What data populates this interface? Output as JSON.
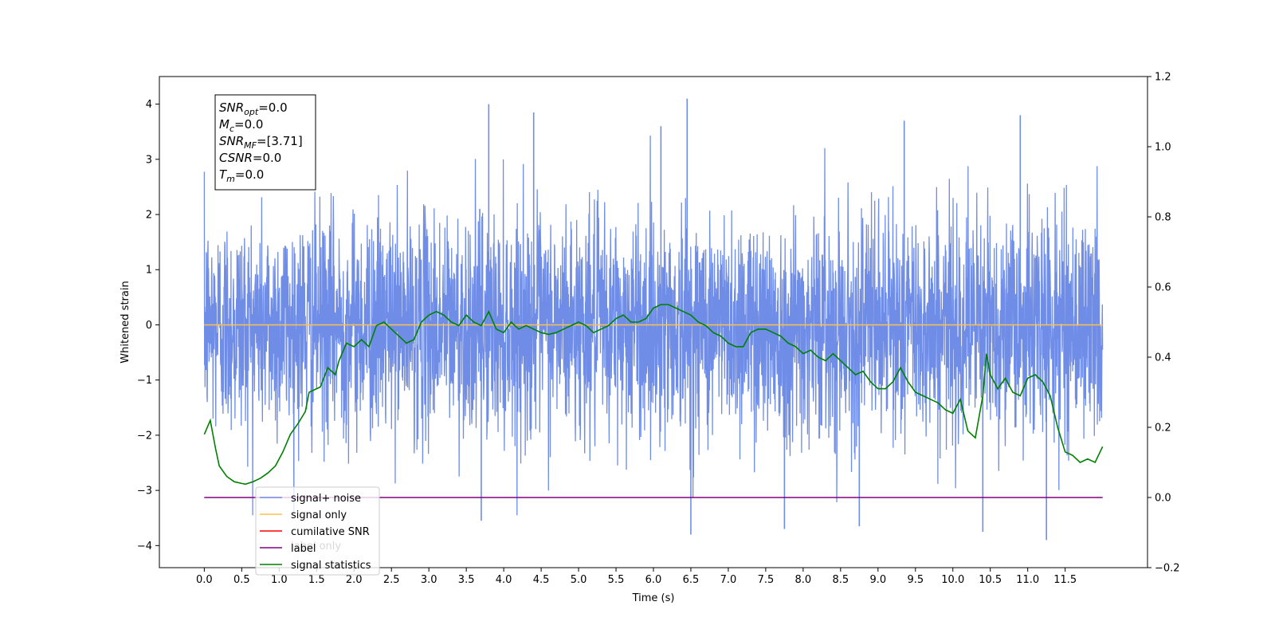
{
  "chart_data": {
    "type": "line",
    "xlabel": "Time (s)",
    "ylabel": "Whitened strain",
    "ylabel_right": "",
    "xlim": [
      -0.6,
      12.6
    ],
    "ylim": [
      -4.4,
      4.5
    ],
    "ylim_right": [
      -0.2,
      1.2
    ],
    "xticks": [
      0.0,
      0.5,
      1.0,
      1.5,
      2.0,
      2.5,
      3.0,
      3.5,
      4.0,
      4.5,
      5.0,
      5.5,
      6.0,
      6.5,
      7.0,
      7.5,
      8.0,
      8.5,
      9.0,
      9.5,
      10.0,
      10.5,
      11.0,
      11.5
    ],
    "xtick_labels": [
      "0.0",
      "0.5",
      "1.0",
      "1.5",
      "2.0",
      "2.5",
      "3.0",
      "3.5",
      "4.0",
      "4.5",
      "5.0",
      "5.5",
      "6.0",
      "6.5",
      "7.0",
      "7.5",
      "8.0",
      "8.5",
      "9.0",
      "9.5",
      "10.0",
      "10.5",
      "11.0",
      "11.5"
    ],
    "yticks_left": [
      -4,
      -3,
      -2,
      -1,
      0,
      1,
      2,
      3,
      4
    ],
    "ytick_labels_left": [
      "−4",
      "−3",
      "−2",
      "−1",
      "0",
      "1",
      "2",
      "3",
      "4"
    ],
    "yticks_right": [
      -0.2,
      0.0,
      0.2,
      0.4,
      0.6,
      0.8,
      1.0,
      1.2
    ],
    "ytick_labels_right": [
      "−0.2",
      "0.0",
      "0.2",
      "0.4",
      "0.6",
      "0.8",
      "1.0",
      "1.2"
    ],
    "grid": false,
    "legend_placement": "lower-left",
    "legend": [
      {
        "label": "signal+ noise",
        "color": "#6f8de6"
      },
      {
        "label": "signal only",
        "color": "#ffc04d"
      },
      {
        "label": "cumilative SNR",
        "color": "#ff0000"
      },
      {
        "label": "label",
        "color": "#800080"
      },
      {
        "label": "signal statistics",
        "color": "#008000"
      }
    ],
    "hidden_legend_text": "label only",
    "stats_box": {
      "lines": [
        {
          "base": "SNR",
          "sub": "opt",
          "value": "=0.0"
        },
        {
          "base": "M",
          "sub": "c",
          "value": "=0.0"
        },
        {
          "base": "SNR",
          "sub": "MF",
          "value": "=[3.71]"
        },
        {
          "base": "CSNR",
          "sub": "",
          "value": "=0.0"
        },
        {
          "base": "T",
          "sub": "m",
          "value": "=0.0"
        }
      ]
    },
    "series": [
      {
        "name": "signal+ noise",
        "axis": "left",
        "color": "#6f8de6",
        "x_range": [
          0.0,
          12.0
        ],
        "noise_sd": 1.0,
        "notable_peaks": [
          {
            "x": 3.8,
            "y": 4.0
          },
          {
            "x": 4.4,
            "y": 3.85
          },
          {
            "x": 6.45,
            "y": 4.1
          },
          {
            "x": 10.9,
            "y": 3.8
          },
          {
            "x": 6.1,
            "y": 3.6
          },
          {
            "x": 9.35,
            "y": 3.7
          },
          {
            "x": 6.5,
            "y": -3.8
          },
          {
            "x": 7.75,
            "y": -3.7
          },
          {
            "x": 11.25,
            "y": -3.9
          },
          {
            "x": 8.75,
            "y": -3.65
          },
          {
            "x": 10.4,
            "y": -3.75
          },
          {
            "x": 3.7,
            "y": -3.55
          }
        ]
      },
      {
        "name": "signal only",
        "axis": "left",
        "color": "#ffc04d",
        "x": [
          0.0,
          12.0
        ],
        "y": [
          0.0,
          0.0
        ]
      },
      {
        "name": "label",
        "axis": "right",
        "color": "#800080",
        "x": [
          0.0,
          12.0
        ],
        "y": [
          0.0,
          0.0
        ]
      },
      {
        "name": "signal statistics",
        "axis": "right",
        "color": "#008000",
        "x": [
          0.0,
          0.08,
          0.15,
          0.2,
          0.3,
          0.4,
          0.5,
          0.55,
          0.65,
          0.75,
          0.85,
          0.95,
          1.05,
          1.15,
          1.25,
          1.35,
          1.4,
          1.55,
          1.65,
          1.75,
          1.8,
          1.9,
          2.0,
          2.1,
          2.2,
          2.3,
          2.4,
          2.5,
          2.6,
          2.7,
          2.8,
          2.9,
          3.0,
          3.1,
          3.2,
          3.3,
          3.4,
          3.5,
          3.6,
          3.7,
          3.8,
          3.9,
          4.0,
          4.1,
          4.2,
          4.3,
          4.4,
          4.5,
          4.6,
          4.7,
          4.8,
          4.9,
          5.0,
          5.1,
          5.2,
          5.3,
          5.4,
          5.5,
          5.6,
          5.7,
          5.8,
          5.9,
          6.0,
          6.1,
          6.2,
          6.3,
          6.4,
          6.5,
          6.6,
          6.7,
          6.8,
          6.9,
          7.0,
          7.1,
          7.2,
          7.3,
          7.4,
          7.5,
          7.6,
          7.7,
          7.8,
          7.9,
          8.0,
          8.1,
          8.2,
          8.3,
          8.4,
          8.5,
          8.6,
          8.7,
          8.8,
          8.9,
          9.0,
          9.1,
          9.2,
          9.3,
          9.4,
          9.5,
          9.6,
          9.7,
          9.8,
          9.9,
          10.0,
          10.1,
          10.2,
          10.3,
          10.4,
          10.45,
          10.5,
          10.6,
          10.7,
          10.8,
          10.9,
          11.0,
          11.1,
          11.2,
          11.3,
          11.4,
          11.5,
          11.6,
          11.7,
          11.8,
          11.9,
          12.0
        ],
        "y": [
          0.18,
          0.22,
          0.14,
          0.09,
          0.06,
          0.045,
          0.04,
          0.038,
          0.045,
          0.055,
          0.07,
          0.09,
          0.13,
          0.18,
          0.21,
          0.245,
          0.3,
          0.315,
          0.37,
          0.35,
          0.39,
          0.44,
          0.43,
          0.45,
          0.43,
          0.49,
          0.5,
          0.48,
          0.46,
          0.44,
          0.45,
          0.5,
          0.52,
          0.53,
          0.52,
          0.5,
          0.49,
          0.52,
          0.5,
          0.49,
          0.53,
          0.48,
          0.47,
          0.5,
          0.48,
          0.49,
          0.48,
          0.47,
          0.465,
          0.47,
          0.48,
          0.49,
          0.5,
          0.49,
          0.47,
          0.48,
          0.49,
          0.51,
          0.52,
          0.5,
          0.5,
          0.51,
          0.54,
          0.55,
          0.55,
          0.54,
          0.53,
          0.52,
          0.5,
          0.49,
          0.47,
          0.46,
          0.44,
          0.43,
          0.43,
          0.47,
          0.48,
          0.48,
          0.47,
          0.46,
          0.44,
          0.43,
          0.41,
          0.42,
          0.4,
          0.39,
          0.41,
          0.39,
          0.37,
          0.35,
          0.36,
          0.33,
          0.31,
          0.31,
          0.33,
          0.37,
          0.33,
          0.3,
          0.29,
          0.28,
          0.27,
          0.25,
          0.24,
          0.28,
          0.19,
          0.17,
          0.29,
          0.41,
          0.35,
          0.31,
          0.34,
          0.3,
          0.29,
          0.34,
          0.35,
          0.33,
          0.29,
          0.2,
          0.13,
          0.12,
          0.1,
          0.11,
          0.1,
          0.145
        ]
      }
    ]
  }
}
